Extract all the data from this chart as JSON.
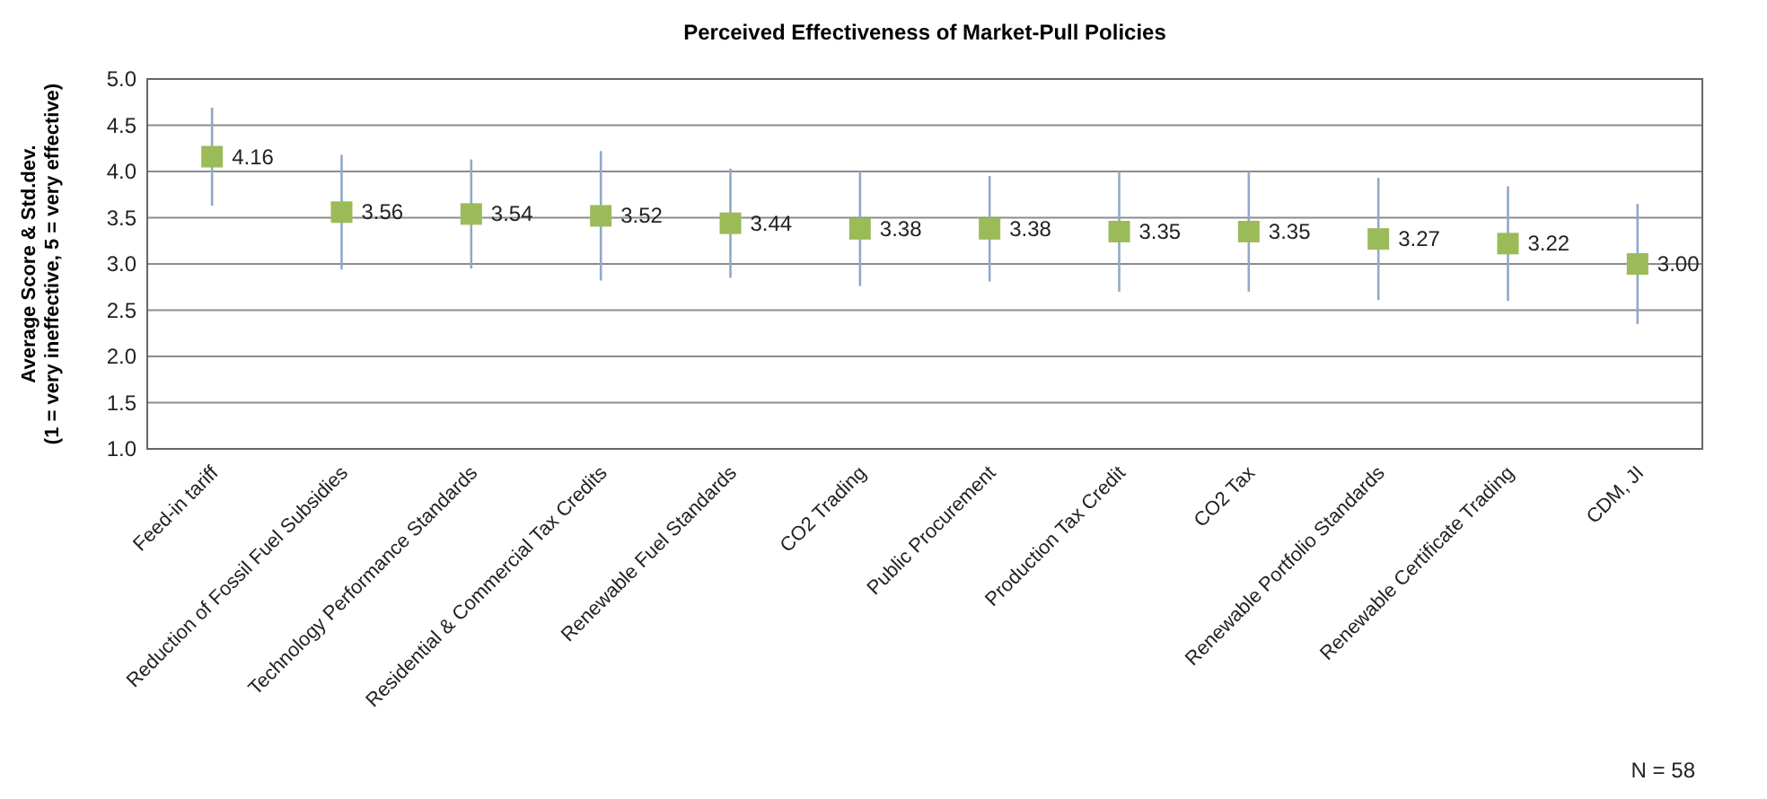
{
  "chart_data": {
    "type": "scatter",
    "title": "Perceived Effectiveness of Market-Pull Policies",
    "ylabel": "Average Score & Std.dev.\n(1 = very ineffective, 5 = very effective)",
    "categories": [
      "Feed-in tariff",
      "Reduction of Fossil Fuel Subsidies",
      "Technology Performance Standards",
      "Residential & Commercial Tax Credits",
      "Renewable Fuel Standards",
      "CO2 Trading",
      "Public Procurement",
      "Production Tax Credit",
      "CO2 Tax",
      "Renewable Portfolio Standards",
      "Renewable Certificate Trading",
      "CDM, JI"
    ],
    "series": [
      {
        "color": "#9bbb59",
        "values": [
          4.16,
          3.56,
          3.54,
          3.52,
          3.44,
          3.38,
          3.38,
          3.35,
          3.35,
          3.27,
          3.22,
          3.0
        ],
        "errors": [
          0.53,
          0.62,
          0.59,
          0.7,
          0.59,
          0.62,
          0.57,
          0.65,
          0.65,
          0.66,
          0.62,
          0.65
        ],
        "value_labels": [
          "4.16",
          "3.56",
          "3.54",
          "3.52",
          "3.44",
          "3.38",
          "3.38",
          "3.35",
          "3.35",
          "3.27",
          "3.22",
          "3.00"
        ]
      }
    ],
    "ylim": [
      1,
      5
    ],
    "yticks": [
      {
        "value": 1,
        "label": "1.0"
      },
      {
        "value": 1.5,
        "label": "1.5"
      },
      {
        "value": 2,
        "label": "2.0"
      },
      {
        "value": 2.5,
        "label": "2.5"
      },
      {
        "value": 3,
        "label": "3.0"
      },
      {
        "value": 3.5,
        "label": "3.5"
      },
      {
        "value": 4,
        "label": "4.0"
      },
      {
        "value": 4.5,
        "label": "4.5"
      },
      {
        "value": 5,
        "label": "5.0"
      }
    ],
    "grid": "y",
    "marker": "square",
    "annotations": [
      "N = 58"
    ]
  }
}
